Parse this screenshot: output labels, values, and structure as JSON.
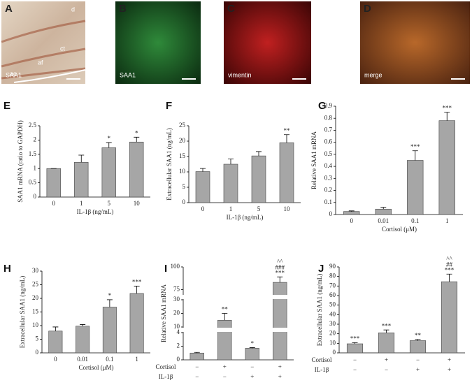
{
  "image_panels": [
    {
      "letter": "A",
      "labels": [
        "d",
        "ct",
        "af",
        "ac",
        "SAA1"
      ]
    },
    {
      "letter": "B",
      "labels": [
        "SAA1"
      ]
    },
    {
      "letter": "C",
      "labels": [
        "vimentin"
      ]
    },
    {
      "letter": "D",
      "labels": [
        "merge"
      ]
    }
  ],
  "chart_data": [
    {
      "type": "bar",
      "letter": "E",
      "ylabel": "SAA1 mRNA (ratio to GAPDH)",
      "xlabel": "IL-1β (ng/mL)",
      "categories": [
        "0",
        "1",
        "5",
        "10"
      ],
      "values": [
        1,
        1.22,
        1.73,
        1.93
      ],
      "errors": [
        0,
        0.25,
        0.18,
        0.17
      ],
      "annotations": [
        [],
        [],
        [
          "*"
        ],
        [
          "*"
        ]
      ],
      "ylim": [
        0,
        2.5
      ],
      "yticks": [
        0,
        0.5,
        1,
        1.5,
        2,
        2.5
      ],
      "color": "#a6a6a6"
    },
    {
      "type": "bar",
      "letter": "F",
      "ylabel": "Extracellular SAA1 (ng/mL)",
      "xlabel": "IL-1β (ng/mL)",
      "categories": [
        "0",
        "1",
        "5",
        "10"
      ],
      "values": [
        10.1,
        12.5,
        15.2,
        19.5
      ],
      "errors": [
        1,
        1.7,
        1.4,
        2.6
      ],
      "annotations": [
        [],
        [],
        [],
        [
          "**"
        ]
      ],
      "ylim": [
        0,
        25
      ],
      "yticks": [
        0,
        5,
        10,
        15,
        20,
        25
      ],
      "color": "#a6a6a6"
    },
    {
      "type": "bar",
      "letter": "G",
      "ylabel": "Relative SAA1 mRNA",
      "xlabel": "Cortisol (μM)",
      "categories": [
        "0",
        "0.01",
        "0.1",
        "1"
      ],
      "values": [
        0.025,
        0.045,
        0.45,
        0.78
      ],
      "errors": [
        0.005,
        0.015,
        0.08,
        0.07
      ],
      "annotations": [
        [],
        [],
        [
          "***"
        ],
        [
          "***"
        ]
      ],
      "ylim": [
        0,
        0.9
      ],
      "yticks": [
        0,
        0.1,
        0.2,
        0.3,
        0.4,
        0.5,
        0.6,
        0.7,
        0.8,
        0.9
      ],
      "color": "#a6a6a6"
    },
    {
      "type": "bar",
      "letter": "H",
      "ylabel": "Extracellular SAA1  (ng/mL)",
      "xlabel": "Cortisol (μM)",
      "categories": [
        "0",
        "0.01",
        "0.1",
        "1"
      ],
      "values": [
        8,
        9.8,
        16.8,
        21.8
      ],
      "errors": [
        1.5,
        0.6,
        2.7,
        2.7
      ],
      "annotations": [
        [],
        [],
        [
          "*"
        ],
        [
          "***"
        ]
      ],
      "ylim": [
        0,
        30
      ],
      "yticks": [
        0,
        5,
        10,
        15,
        20,
        25,
        30
      ],
      "color": "#a6a6a6"
    },
    {
      "type": "bar",
      "letter": "I",
      "ylabel": "Relative SAA1 mRNA",
      "conditions": [
        {
          "name": "Cortisol",
          "values": [
            "−",
            "+",
            "−",
            "+"
          ]
        },
        {
          "name": "IL-1β",
          "values": [
            "−",
            "−",
            "+",
            "+"
          ]
        }
      ],
      "values": [
        1,
        15,
        1.7,
        83
      ],
      "errors": [
        0.1,
        5,
        0.1,
        6
      ],
      "annotations": [
        [],
        [
          "**"
        ],
        [
          "*"
        ],
        [
          "^^",
          "###",
          "***"
        ]
      ],
      "ysegments": [
        {
          "ylim": [
            0,
            4
          ],
          "yticks": [
            0,
            2,
            4
          ]
        },
        {
          "ylim": [
            10,
            30
          ],
          "yticks": [
            10,
            20,
            30
          ]
        },
        {
          "ylim": [
            70,
            100
          ],
          "yticks": [
            75,
            100
          ]
        }
      ],
      "color": "#a6a6a6"
    },
    {
      "type": "bar",
      "letter": "J",
      "ylabel": "Extracellular SAA1 (ng/mL)",
      "conditions": [
        {
          "name": "Cortisol",
          "values": [
            "−",
            "+",
            "−",
            "+"
          ]
        },
        {
          "name": "IL-1β",
          "values": [
            "−",
            "−",
            "+",
            "+"
          ]
        }
      ],
      "values": [
        9.5,
        21,
        12.8,
        74.5
      ],
      "errors": [
        1.2,
        3,
        1.3,
        8
      ],
      "annotations": [
        [
          "***"
        ],
        [
          "***"
        ],
        [
          "**"
        ],
        [
          "^^",
          "##",
          "***"
        ]
      ],
      "ylim": [
        0,
        90
      ],
      "yticks": [
        0,
        10,
        20,
        30,
        40,
        50,
        60,
        70,
        80,
        90
      ],
      "color": "#a6a6a6"
    }
  ]
}
